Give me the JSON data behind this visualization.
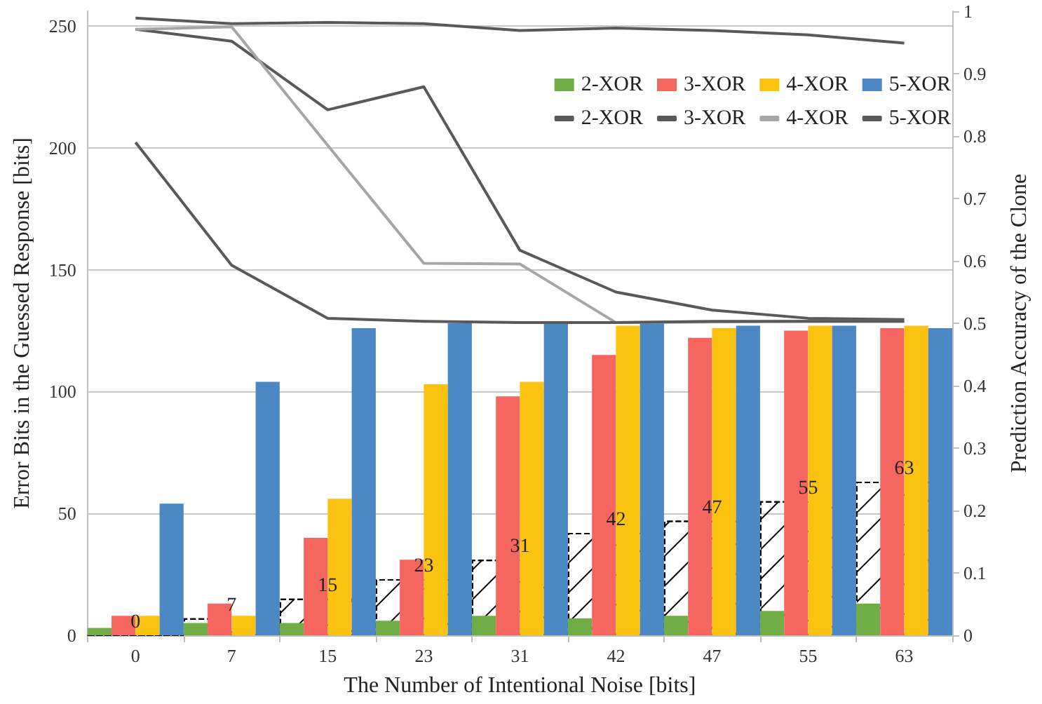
{
  "chart_data": {
    "type": "bar",
    "xlabel": "The Number of Intentional Noise [bits]",
    "ylabel": "Error Bits in the Guessed Response [bits]",
    "y2label": "Prediction Accuracy of the Clone",
    "categories": [
      "0",
      "7",
      "15",
      "23",
      "31",
      "42",
      "47",
      "55",
      "63"
    ],
    "series": [
      {
        "name": "2-XOR",
        "color": "#70ad47",
        "values": [
          3,
          5,
          5,
          6,
          8,
          7,
          8,
          10,
          13
        ]
      },
      {
        "name": "3-XOR",
        "color": "#f4665f",
        "values": [
          8,
          13,
          40,
          31,
          98,
          115,
          122,
          125,
          126
        ]
      },
      {
        "name": "4-XOR",
        "color": "#fbc30f",
        "values": [
          8,
          8,
          56,
          103,
          104,
          127,
          126,
          127,
          127
        ]
      },
      {
        "name": "5-XOR",
        "color": "#4c88c4",
        "values": [
          54,
          104,
          126,
          128,
          128,
          128,
          127,
          127,
          126
        ]
      },
      {
        "color": "#000000",
        "line_style": "dashed",
        "values": [
          0,
          7,
          15,
          23,
          31,
          42,
          47,
          55,
          63
        ],
        "value_labels": [
          "0",
          "7",
          "15",
          "23",
          "31",
          "42",
          "47",
          "55",
          "63"
        ]
      },
      {
        "name": "2-XOR",
        "type": "line",
        "axis": "y2",
        "color": "#595959",
        "values": [
          0.989,
          0.98,
          0.982,
          0.98,
          0.969,
          0.973,
          0.969,
          0.962,
          0.949
        ]
      },
      {
        "name": "3-XOR",
        "type": "line",
        "axis": "y2",
        "color": "#595959",
        "values": [
          0.971,
          0.952,
          0.842,
          0.879,
          0.617,
          0.55,
          0.521,
          0.508,
          0.506
        ]
      },
      {
        "name": "4-XOR",
        "type": "line",
        "axis": "y2",
        "color": "#a6a6a6",
        "values": [
          0.971,
          0.975,
          0.785,
          0.596,
          0.595,
          0.501,
          0.502,
          0.503,
          0.503
        ]
      },
      {
        "name": "5-XOR",
        "type": "line",
        "axis": "y2",
        "color": "#595959",
        "values": [
          0.79,
          0.593,
          0.508,
          0.503,
          0.501,
          0.501,
          0.503,
          0.503,
          0.503
        ]
      }
    ],
    "ylim": [
      0,
      256
    ],
    "yticks": [
      0,
      50,
      100,
      150,
      200,
      250
    ],
    "y2lim": [
      0,
      1
    ],
    "y2ticks": [
      0,
      0.1,
      0.2,
      0.3,
      0.4,
      0.5,
      0.6,
      0.7,
      0.8,
      0.9,
      1
    ],
    "grid": "y",
    "legend": "top right",
    "marker": "none",
    "line_style": "solid"
  }
}
